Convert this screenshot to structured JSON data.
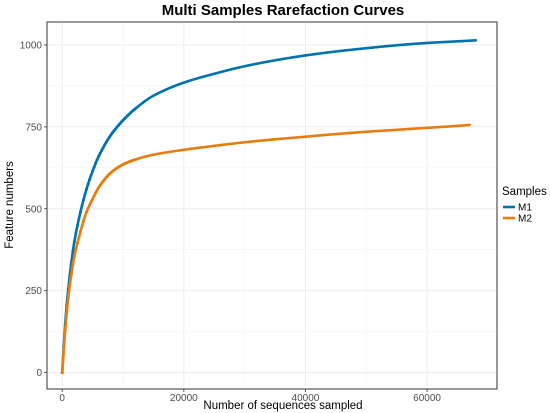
{
  "chart_data": {
    "type": "line",
    "title": "Multi Samples Rarefaction Curves",
    "xlabel": "Number of sequences sampled",
    "ylabel": "Feature numbers",
    "xlim": [
      -2500,
      71500
    ],
    "ylim": [
      -50,
      1070
    ],
    "x_ticks": [
      0,
      20000,
      40000,
      60000
    ],
    "x_tick_labels": [
      "0",
      "20000",
      "40000",
      "60000"
    ],
    "y_ticks": [
      0,
      250,
      500,
      750,
      1000
    ],
    "y_tick_labels": [
      "0",
      "250",
      "500",
      "750",
      "1000"
    ],
    "grid": true,
    "legend": {
      "title": "Samples",
      "position": "right"
    },
    "series": [
      {
        "name": "M1",
        "color": "#0072B2",
        "x": [
          0,
          500,
          1000,
          1500,
          2000,
          3000,
          4000,
          5000,
          6000,
          8000,
          10000,
          12000,
          15000,
          20000,
          25000,
          30000,
          35000,
          40000,
          45000,
          50000,
          55000,
          60000,
          65000,
          68000
        ],
        "y": [
          0,
          150,
          255,
          335,
          400,
          490,
          560,
          615,
          660,
          725,
          770,
          805,
          845,
          885,
          912,
          935,
          953,
          968,
          980,
          990,
          999,
          1006,
          1011,
          1014
        ]
      },
      {
        "name": "M2",
        "color": "#E87D0E",
        "x": [
          0,
          500,
          1000,
          1500,
          2000,
          3000,
          4000,
          5000,
          6000,
          8000,
          10000,
          12000,
          15000,
          20000,
          25000,
          30000,
          35000,
          40000,
          45000,
          50000,
          55000,
          60000,
          65000,
          67000
        ],
        "y": [
          0,
          130,
          230,
          300,
          355,
          430,
          490,
          530,
          565,
          610,
          635,
          650,
          665,
          680,
          692,
          703,
          712,
          720,
          728,
          735,
          741,
          747,
          753,
          756
        ]
      }
    ]
  }
}
